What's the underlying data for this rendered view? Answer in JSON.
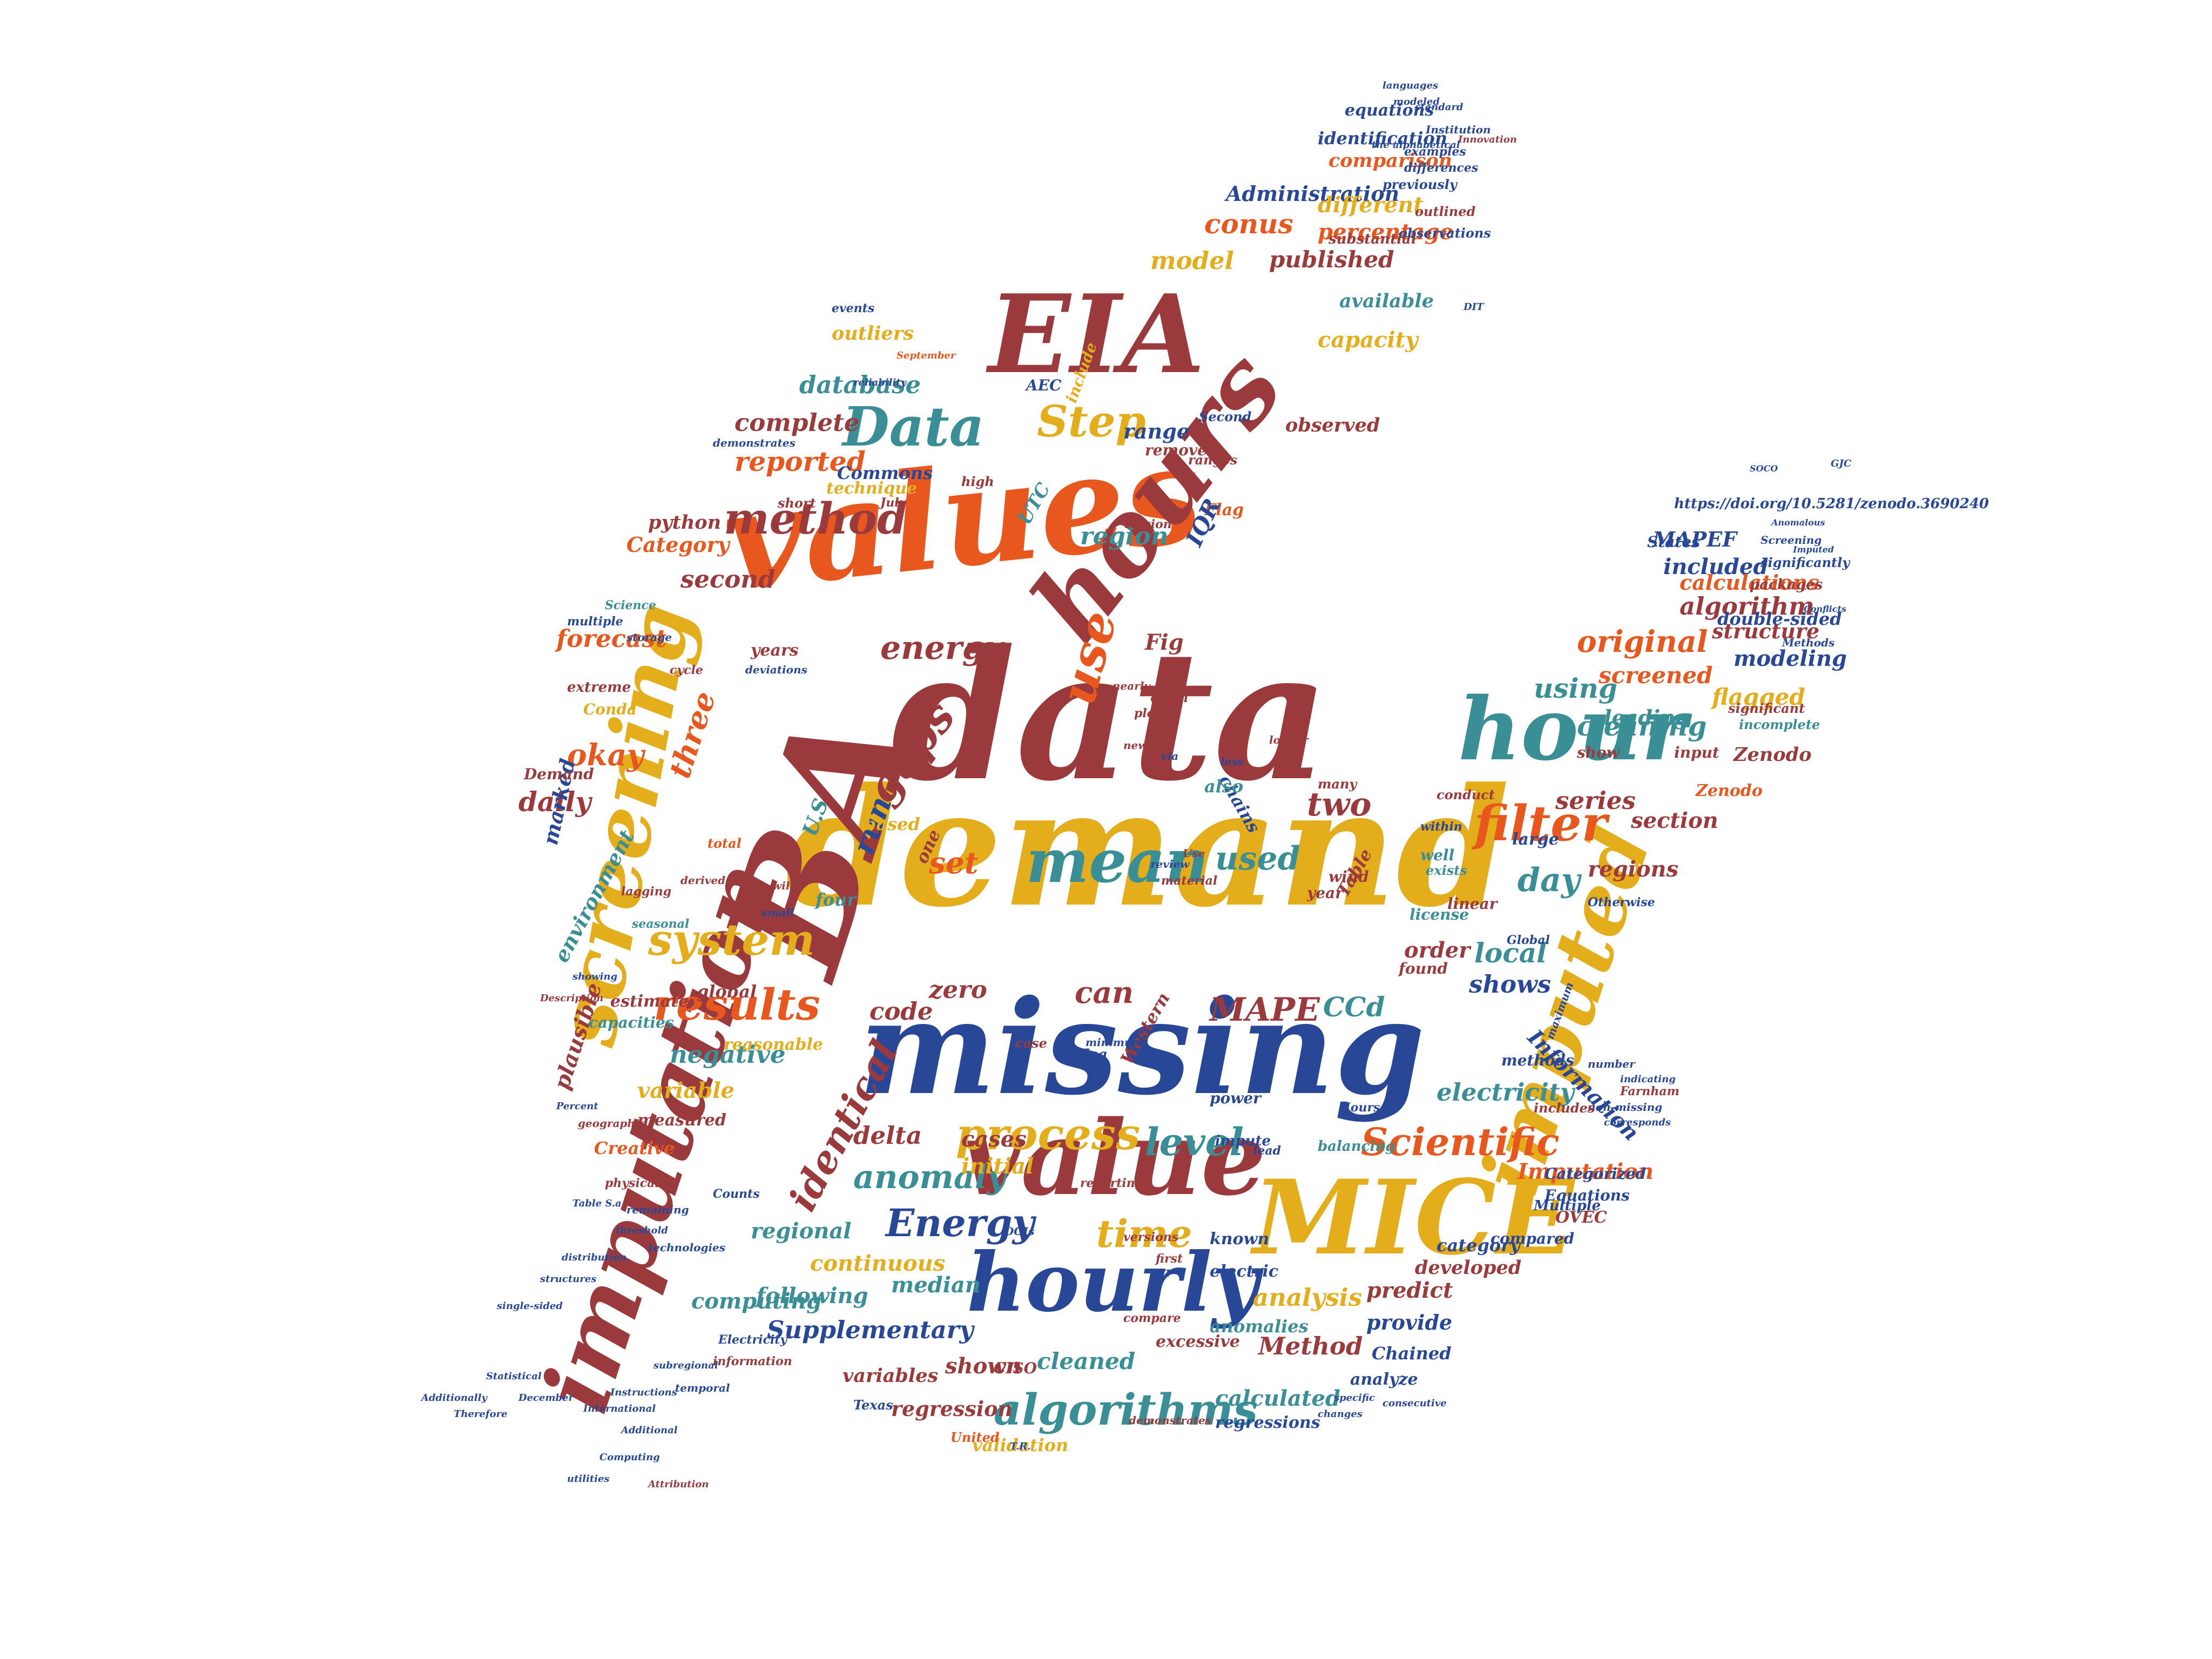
{
  "palette": {
    "red": "#9b3a3c",
    "orange": "#e8571d",
    "gold": "#e4ad1c",
    "teal": "#3a8f97",
    "navy": "#284897"
  },
  "words": [
    {
      "text": "demand",
      "color": "gold"
    },
    {
      "text": "data",
      "color": "red"
    },
    {
      "text": "missing",
      "color": "navy"
    },
    {
      "text": "values",
      "color": "orange"
    },
    {
      "text": "BA",
      "color": "red"
    },
    {
      "text": "EIA",
      "color": "red"
    },
    {
      "text": "hours",
      "color": "red"
    },
    {
      "text": "value",
      "color": "red"
    },
    {
      "text": "imputation",
      "color": "red"
    },
    {
      "text": "screening",
      "color": "gold"
    },
    {
      "text": "MICE",
      "color": "gold"
    },
    {
      "text": "hourly",
      "color": "navy"
    },
    {
      "text": "imputed",
      "color": "gold"
    },
    {
      "text": "hour",
      "color": "teal"
    },
    {
      "text": "mean",
      "color": "teal"
    },
    {
      "text": "Data",
      "color": "teal"
    },
    {
      "text": "use",
      "color": "orange"
    },
    {
      "text": "method",
      "color": "red"
    },
    {
      "text": "filter",
      "color": "orange"
    },
    {
      "text": "process",
      "color": "gold"
    },
    {
      "text": "algorithms",
      "color": "teal"
    },
    {
      "text": "results",
      "color": "orange"
    },
    {
      "text": "system",
      "color": "gold"
    },
    {
      "text": "gaps",
      "color": "red"
    },
    {
      "text": "Step",
      "color": "gold"
    },
    {
      "text": "Scientific",
      "color": "orange"
    },
    {
      "text": "level",
      "color": "teal"
    },
    {
      "text": "identical",
      "color": "red"
    },
    {
      "text": "Energy",
      "color": "navy"
    },
    {
      "text": "time",
      "color": "gold"
    },
    {
      "text": "energy",
      "color": "red"
    },
    {
      "text": "anomaly",
      "color": "teal"
    },
    {
      "text": "cleaning",
      "color": "teal"
    },
    {
      "text": "using",
      "color": "teal"
    },
    {
      "text": "original",
      "color": "orange"
    },
    {
      "text": "MAPE",
      "color": "red"
    },
    {
      "text": "CCd",
      "color": "teal"
    },
    {
      "text": "reported",
      "color": "orange"
    },
    {
      "text": "database",
      "color": "teal"
    },
    {
      "text": "complete",
      "color": "red"
    },
    {
      "text": "conus",
      "color": "orange"
    },
    {
      "text": "model",
      "color": "gold"
    },
    {
      "text": "published",
      "color": "red"
    },
    {
      "text": "percentage",
      "color": "orange"
    },
    {
      "text": "Administration",
      "color": "navy"
    },
    {
      "text": "comparison",
      "color": "orange"
    },
    {
      "text": "identification",
      "color": "navy"
    },
    {
      "text": "equations",
      "color": "navy"
    },
    {
      "text": "different",
      "color": "gold"
    },
    {
      "text": "available",
      "color": "teal"
    },
    {
      "text": "capacity",
      "color": "gold"
    },
    {
      "text": "observed",
      "color": "red"
    },
    {
      "text": "range",
      "color": "navy"
    },
    {
      "text": "region",
      "color": "teal"
    },
    {
      "text": "second",
      "color": "red"
    },
    {
      "text": "forecast",
      "color": "orange"
    },
    {
      "text": "okay",
      "color": "orange"
    },
    {
      "text": "three",
      "color": "orange"
    },
    {
      "text": "daily",
      "color": "red"
    },
    {
      "text": "run",
      "color": "navy"
    },
    {
      "text": "set",
      "color": "orange"
    },
    {
      "text": "used",
      "color": "teal"
    },
    {
      "text": "two",
      "color": "red"
    },
    {
      "text": "day",
      "color": "teal"
    },
    {
      "text": "series",
      "color": "red"
    },
    {
      "text": "section",
      "color": "red"
    },
    {
      "text": "regions",
      "color": "red"
    },
    {
      "text": "local",
      "color": "teal"
    },
    {
      "text": "shows",
      "color": "navy"
    },
    {
      "text": "order",
      "color": "red"
    },
    {
      "text": "can",
      "color": "red"
    },
    {
      "text": "code",
      "color": "red"
    },
    {
      "text": "zero",
      "color": "red"
    },
    {
      "text": "negative",
      "color": "teal"
    },
    {
      "text": "variable",
      "color": "gold"
    },
    {
      "text": "plausible",
      "color": "red"
    },
    {
      "text": "delta",
      "color": "red"
    },
    {
      "text": "initial",
      "color": "gold"
    },
    {
      "text": "cases",
      "color": "red"
    },
    {
      "text": "electricity",
      "color": "teal"
    },
    {
      "text": "Information",
      "color": "navy"
    },
    {
      "text": "Imputation",
      "color": "orange"
    },
    {
      "text": "algorithm",
      "color": "red"
    },
    {
      "text": "included",
      "color": "navy"
    },
    {
      "text": "calculations",
      "color": "orange"
    },
    {
      "text": "structure",
      "color": "red"
    },
    {
      "text": "modeling",
      "color": "navy"
    },
    {
      "text": "screened",
      "color": "orange"
    },
    {
      "text": "flagged",
      "color": "gold"
    },
    {
      "text": "leading",
      "color": "teal"
    },
    {
      "text": "Zenodo",
      "color": "red"
    },
    {
      "text": "double-sided",
      "color": "navy"
    },
    {
      "text": "MAPEF",
      "color": "navy"
    },
    {
      "text": "https://doi.org/10.5281/zenodo.3690240",
      "color": "navy"
    },
    {
      "text": "computing",
      "color": "teal"
    },
    {
      "text": "regional",
      "color": "teal"
    },
    {
      "text": "continuous",
      "color": "gold"
    },
    {
      "text": "following",
      "color": "teal"
    },
    {
      "text": "Supplementary",
      "color": "navy"
    },
    {
      "text": "shown",
      "color": "red"
    },
    {
      "text": "cleaned",
      "color": "teal"
    },
    {
      "text": "median",
      "color": "teal"
    },
    {
      "text": "analysis",
      "color": "gold"
    },
    {
      "text": "predict",
      "color": "red"
    },
    {
      "text": "developed",
      "color": "red"
    },
    {
      "text": "provide",
      "color": "navy"
    },
    {
      "text": "Method",
      "color": "red"
    },
    {
      "text": "calculated",
      "color": "teal"
    },
    {
      "text": "regression",
      "color": "red"
    },
    {
      "text": "validation",
      "color": "gold"
    },
    {
      "text": "variables",
      "color": "red"
    },
    {
      "text": "category",
      "color": "navy"
    },
    {
      "text": "Chained",
      "color": "navy"
    },
    {
      "text": "analyze",
      "color": "navy"
    },
    {
      "text": "regressions",
      "color": "navy"
    },
    {
      "text": "known",
      "color": "navy"
    },
    {
      "text": "anomalies",
      "color": "teal"
    },
    {
      "text": "excessive",
      "color": "red"
    },
    {
      "text": "electric",
      "color": "navy"
    },
    {
      "text": "Categorized",
      "color": "navy"
    },
    {
      "text": "Equations",
      "color": "navy"
    },
    {
      "text": "OVEC",
      "color": "red"
    },
    {
      "text": "compared",
      "color": "navy"
    },
    {
      "text": "environment",
      "color": "teal"
    },
    {
      "text": "marked",
      "color": "navy"
    },
    {
      "text": "Category",
      "color": "orange"
    },
    {
      "text": "Commons",
      "color": "navy"
    },
    {
      "text": "technique",
      "color": "gold"
    },
    {
      "text": "python",
      "color": "red"
    },
    {
      "text": "outliers",
      "color": "gold"
    },
    {
      "text": "events",
      "color": "navy"
    },
    {
      "text": "include",
      "color": "gold"
    },
    {
      "text": "remove",
      "color": "red"
    },
    {
      "text": "Flag",
      "color": "orange"
    },
    {
      "text": "IQR",
      "color": "navy"
    },
    {
      "text": "UTC",
      "color": "teal"
    },
    {
      "text": "Fig",
      "color": "red"
    },
    {
      "text": "chains",
      "color": "navy"
    },
    {
      "text": "also",
      "color": "teal"
    },
    {
      "text": "years",
      "color": "red"
    },
    {
      "text": "Demand",
      "color": "red"
    },
    {
      "text": "Conda",
      "color": "gold"
    },
    {
      "text": "extreme",
      "color": "red"
    },
    {
      "text": "Creative",
      "color": "orange"
    },
    {
      "text": "measured",
      "color": "red"
    },
    {
      "text": "estimate",
      "color": "red"
    },
    {
      "text": "capacities",
      "color": "teal"
    },
    {
      "text": "global",
      "color": "red"
    },
    {
      "text": "reasonable",
      "color": "gold"
    },
    {
      "text": "Western",
      "color": "red"
    },
    {
      "text": "power",
      "color": "navy"
    },
    {
      "text": "impute",
      "color": "navy"
    },
    {
      "text": "balancing",
      "color": "teal"
    },
    {
      "text": "license",
      "color": "teal"
    },
    {
      "text": "found",
      "color": "red"
    },
    {
      "text": "linear",
      "color": "red"
    },
    {
      "text": "well",
      "color": "teal"
    },
    {
      "text": "large",
      "color": "navy"
    },
    {
      "text": "input",
      "color": "red"
    },
    {
      "text": "show",
      "color": "red"
    },
    {
      "text": "Multiple",
      "color": "navy"
    },
    {
      "text": "States",
      "color": "navy"
    },
    {
      "text": "AEC",
      "color": "navy"
    },
    {
      "text": "CISO",
      "color": "red"
    },
    {
      "text": "Texas",
      "color": "navy"
    },
    {
      "text": "United",
      "color": "orange"
    },
    {
      "text": "U.S",
      "color": "teal"
    },
    {
      "text": "four",
      "color": "teal"
    },
    {
      "text": "one",
      "color": "red"
    },
    {
      "text": "based",
      "color": "gold"
    },
    {
      "text": "Second",
      "color": "navy"
    },
    {
      "text": "Table",
      "color": "red"
    },
    {
      "text": "year",
      "color": "red"
    },
    {
      "text": "wind",
      "color": "red"
    },
    {
      "text": "Global",
      "color": "navy"
    },
    {
      "text": "Farnham",
      "color": "red"
    },
    {
      "text": "Hours",
      "color": "navy"
    },
    {
      "text": "Counts",
      "color": "navy"
    },
    {
      "text": "Zenodo",
      "color": "orange"
    },
    {
      "text": "Otherwise",
      "color": "navy"
    },
    {
      "text": "substantial",
      "color": "red"
    },
    {
      "text": "outlined",
      "color": "red"
    },
    {
      "text": "observations",
      "color": "navy"
    },
    {
      "text": "differences",
      "color": "navy"
    },
    {
      "text": "previously",
      "color": "navy"
    },
    {
      "text": "examples",
      "color": "navy"
    },
    {
      "text": "Institution",
      "color": "navy"
    },
    {
      "text": "Innovation",
      "color": "red"
    },
    {
      "text": "the alphabetical",
      "color": "navy"
    },
    {
      "text": "standard",
      "color": "navy"
    },
    {
      "text": "languages",
      "color": "navy"
    },
    {
      "text": "modeled",
      "color": "navy"
    },
    {
      "text": "significantly",
      "color": "navy"
    },
    {
      "text": "packages",
      "color": "red"
    },
    {
      "text": "Screening",
      "color": "navy"
    },
    {
      "text": "significant",
      "color": "red"
    },
    {
      "text": "incomplete",
      "color": "teal"
    },
    {
      "text": "Methods",
      "color": "navy"
    },
    {
      "text": "reliability",
      "color": "navy"
    },
    {
      "text": "September",
      "color": "orange"
    },
    {
      "text": "demonstrates",
      "color": "navy"
    },
    {
      "text": "ranges",
      "color": "red"
    },
    {
      "text": "version",
      "color": "red"
    },
    {
      "text": "July",
      "color": "red"
    },
    {
      "text": "short",
      "color": "red"
    },
    {
      "text": "high",
      "color": "red"
    },
    {
      "text": "Science",
      "color": "teal"
    },
    {
      "text": "multiple",
      "color": "navy"
    },
    {
      "text": "storage",
      "color": "navy"
    },
    {
      "text": "cycle",
      "color": "red"
    },
    {
      "text": "deviations",
      "color": "navy"
    },
    {
      "text": "nearly",
      "color": "red"
    },
    {
      "text": "plots",
      "color": "red"
    },
    {
      "text": "review",
      "color": "navy"
    },
    {
      "text": "material",
      "color": "red"
    },
    {
      "text": "Use",
      "color": "red"
    },
    {
      "text": "via",
      "color": "navy"
    },
    {
      "text": "new",
      "color": "red"
    },
    {
      "text": "less",
      "color": "navy"
    },
    {
      "text": "seasonal",
      "color": "teal"
    },
    {
      "text": "lagging",
      "color": "red"
    },
    {
      "text": "derived",
      "color": "red"
    },
    {
      "text": "small",
      "color": "navy"
    },
    {
      "text": "will",
      "color": "red"
    },
    {
      "text": "total",
      "color": "orange"
    },
    {
      "text": "showing",
      "color": "navy"
    },
    {
      "text": "Description",
      "color": "red"
    },
    {
      "text": "physically",
      "color": "red"
    },
    {
      "text": "remaining",
      "color": "navy"
    },
    {
      "text": "technologies",
      "color": "navy"
    },
    {
      "text": "reporting",
      "color": "red"
    },
    {
      "text": "lead",
      "color": "navy"
    },
    {
      "text": "first",
      "color": "red"
    },
    {
      "text": "compare",
      "color": "red"
    },
    {
      "text": "demonstrates",
      "color": "red"
    },
    {
      "text": "DOIs",
      "color": "navy"
    },
    {
      "text": "Electricity",
      "color": "navy"
    },
    {
      "text": "information",
      "color": "red"
    },
    {
      "text": "temporal",
      "color": "navy"
    },
    {
      "text": "Statistical",
      "color": "navy"
    },
    {
      "text": "December",
      "color": "navy"
    },
    {
      "text": "Additionally",
      "color": "navy"
    },
    {
      "text": "Therefore",
      "color": "navy"
    },
    {
      "text": "Computing",
      "color": "navy"
    },
    {
      "text": "utilities",
      "color": "navy"
    },
    {
      "text": "Attribution",
      "color": "red"
    },
    {
      "text": "Additional",
      "color": "navy"
    },
    {
      "text": "International",
      "color": "navy"
    },
    {
      "text": "Instructions",
      "color": "navy"
    },
    {
      "text": "subregional",
      "color": "navy"
    },
    {
      "text": "Percent",
      "color": "navy"
    },
    {
      "text": "geographic",
      "color": "red"
    },
    {
      "text": "threshold",
      "color": "navy"
    },
    {
      "text": "distribution",
      "color": "navy"
    },
    {
      "text": "structures",
      "color": "navy"
    },
    {
      "text": "single-sided",
      "color": "navy"
    },
    {
      "text": "Table S.a",
      "color": "navy"
    },
    {
      "text": "minimum",
      "color": "navy"
    },
    {
      "text": "maximum",
      "color": "navy"
    },
    {
      "text": "methods",
      "color": "navy"
    },
    {
      "text": "number",
      "color": "navy"
    },
    {
      "text": "non-missing",
      "color": "navy"
    },
    {
      "text": "corresponds",
      "color": "navy"
    },
    {
      "text": "indicating",
      "color": "navy"
    },
    {
      "text": "consecutive",
      "color": "navy"
    },
    {
      "text": "changes",
      "color": "navy"
    },
    {
      "text": "specific",
      "color": "navy"
    },
    {
      "text": "versions",
      "color": "red"
    },
    {
      "text": "flag",
      "color": "navy"
    },
    {
      "text": "case",
      "color": "red"
    },
    {
      "text": "longer",
      "color": "red"
    },
    {
      "text": "often",
      "color": "red"
    },
    {
      "text": "within",
      "color": "navy"
    },
    {
      "text": "exists",
      "color": "teal"
    },
    {
      "text": "many",
      "color": "red"
    },
    {
      "text": "conduct",
      "color": "red"
    },
    {
      "text": "includes",
      "color": "red"
    },
    {
      "text": "DT",
      "color": "navy"
    },
    {
      "text": "T.R.",
      "color": "navy"
    },
    {
      "text": "DIT",
      "color": "navy"
    },
    {
      "text": "GJC",
      "color": "navy"
    },
    {
      "text": "SOCO",
      "color": "navy"
    },
    {
      "text": "Anomalous",
      "color": "navy"
    },
    {
      "text": "Conflicts",
      "color": "navy"
    },
    {
      "text": "Imputed",
      "color": "navy"
    }
  ]
}
